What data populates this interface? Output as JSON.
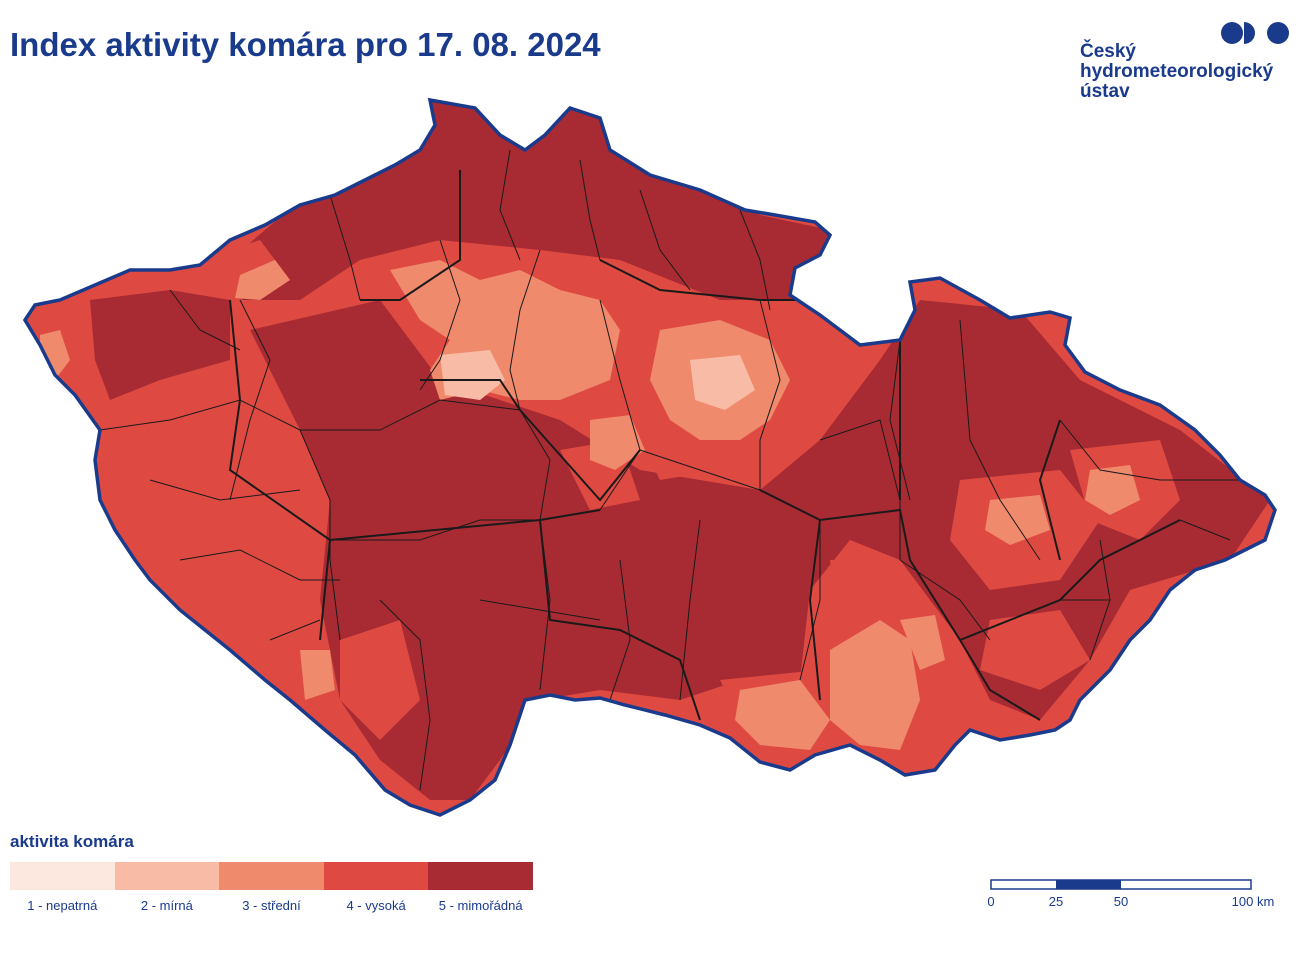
{
  "title": "Index aktivity komára pro 17. 08. 2024",
  "logo": {
    "lines": [
      "Český",
      "hydrometeorologický",
      "ústav"
    ],
    "color": "#1a3a8c"
  },
  "legend": {
    "title": "aktivita komára",
    "classes": [
      {
        "label": "1 - nepatrná",
        "color": "#fde8e0"
      },
      {
        "label": "2 - mírná",
        "color": "#f8bba5"
      },
      {
        "label": "3 - střední",
        "color": "#f08a6d"
      },
      {
        "label": "4 - vysoká",
        "color": "#de4a42"
      },
      {
        "label": "5 - mimořádná",
        "color": "#a82b33"
      }
    ]
  },
  "scale": {
    "ticks": [
      "0",
      "25",
      "50",
      "100 km"
    ]
  },
  "colors": {
    "border": "#1a3a8c",
    "district_lines": "#1a1a1a"
  }
}
